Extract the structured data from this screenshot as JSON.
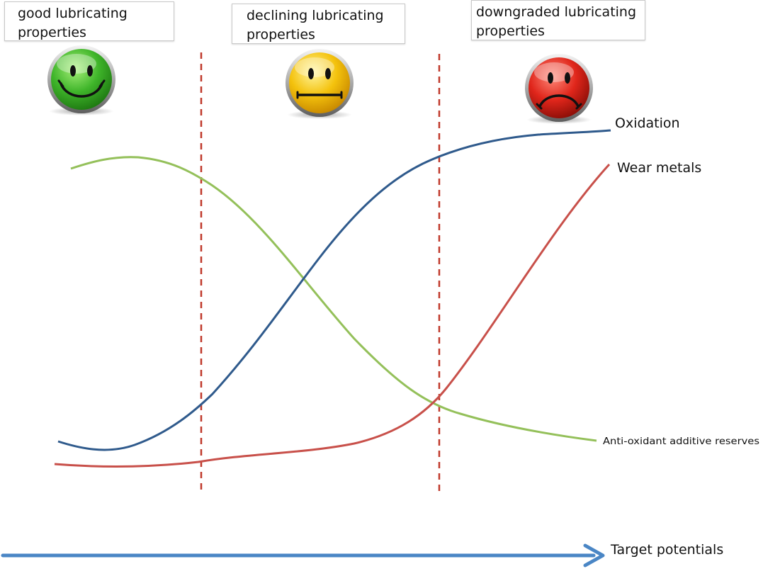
{
  "zones": [
    {
      "id": "good",
      "label": "good lubricating\nproperties",
      "mood": "happy",
      "color": "#3fb52a"
    },
    {
      "id": "declining",
      "label": "declining lubricating\nproperties",
      "mood": "neutral",
      "color": "#f4c20d"
    },
    {
      "id": "downgraded",
      "label": "downgraded lubricating\nproperties",
      "mood": "sad",
      "color": "#e0261b"
    }
  ],
  "curves": {
    "oxidation": {
      "label": "Oxidation",
      "color": "#2f5a8c"
    },
    "wear_metals": {
      "label": "Wear metals",
      "color": "#c8504a"
    },
    "antioxidant": {
      "label": "Anti-oxidant additive reserves",
      "color": "#94c05a"
    }
  },
  "axis": {
    "label": "Target potentials",
    "color": "#4a86c5"
  },
  "divider_color": "#c0392b"
}
